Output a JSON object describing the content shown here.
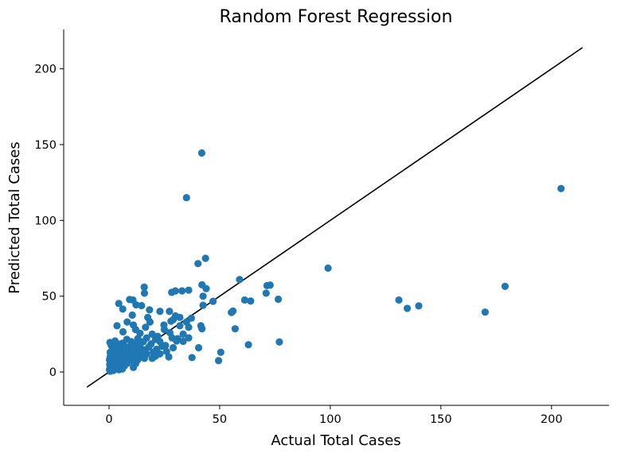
{
  "chart_data": {
    "type": "scatter",
    "title": "Random Forest Regression",
    "xlabel": "Actual Total Cases",
    "ylabel": "Predicted Total Cases",
    "xlim": [
      -20.5,
      226
    ],
    "ylim": [
      -22,
      226
    ],
    "xticks": [
      0,
      50,
      100,
      150,
      200
    ],
    "yticks": [
      0,
      50,
      100,
      150,
      200
    ],
    "grid": false,
    "legend": "none",
    "point_color": "#1f77b4",
    "line_color": "#000000",
    "reference_line": {
      "x": [
        -10,
        214
      ],
      "y": [
        -10,
        214
      ]
    },
    "points": [
      [
        41.9,
        144.5
      ],
      [
        35.0,
        115.0
      ],
      [
        204.3,
        121.0
      ],
      [
        43.6,
        75.0
      ],
      [
        40.2,
        71.5
      ],
      [
        99.0,
        68.5
      ],
      [
        59.0,
        61.0
      ],
      [
        72.8,
        57.3
      ],
      [
        71.4,
        57.0
      ],
      [
        42.0,
        57.5
      ],
      [
        15.9,
        56.0
      ],
      [
        179.0,
        56.5
      ],
      [
        33.0,
        53.5
      ],
      [
        30.0,
        53.5
      ],
      [
        36.0,
        54.0
      ],
      [
        28.3,
        52.5
      ],
      [
        43.9,
        55.0
      ],
      [
        16.0,
        52.0
      ],
      [
        71.0,
        52.0
      ],
      [
        42.5,
        50.0
      ],
      [
        9.3,
        47.8
      ],
      [
        10.8,
        47.5
      ],
      [
        131.0,
        47.5
      ],
      [
        76.5,
        48.0
      ],
      [
        61.3,
        47.5
      ],
      [
        64.0,
        46.8
      ],
      [
        47.0,
        46.6
      ],
      [
        4.4,
        45.2
      ],
      [
        12.2,
        44.3
      ],
      [
        14.7,
        43.8
      ],
      [
        42.5,
        44.0
      ],
      [
        134.8,
        42.0
      ],
      [
        140.0,
        43.6
      ],
      [
        6.2,
        41.5
      ],
      [
        18.3,
        41.0
      ],
      [
        55.3,
        39.3
      ],
      [
        56.0,
        40.2
      ],
      [
        23.0,
        40.0
      ],
      [
        27.3,
        40.0
      ],
      [
        170.0,
        39.5
      ],
      [
        10.5,
        37.5
      ],
      [
        30.0,
        37.0
      ],
      [
        17.5,
        36.0
      ],
      [
        32.0,
        36.0
      ],
      [
        37.2,
        35.5
      ],
      [
        29.0,
        34.5
      ],
      [
        28.0,
        33.5
      ],
      [
        8.2,
        33.0
      ],
      [
        18.5,
        33.0
      ],
      [
        35.0,
        33.0
      ],
      [
        24.8,
        31.0
      ],
      [
        11.0,
        31.0
      ],
      [
        3.6,
        30.5
      ],
      [
        32.0,
        30.5
      ],
      [
        41.5,
        30.5
      ],
      [
        57.0,
        28.5
      ],
      [
        36.0,
        29.5
      ],
      [
        16.5,
        29.5
      ],
      [
        12.0,
        28.0
      ],
      [
        25.0,
        28.0
      ],
      [
        42.0,
        28.5
      ],
      [
        6.3,
        26.5
      ],
      [
        27.5,
        26.0
      ],
      [
        14.0,
        25.5
      ],
      [
        19.5,
        25.0
      ],
      [
        33.5,
        25.0
      ],
      [
        22.0,
        23.5
      ],
      [
        17.0,
        22.5
      ],
      [
        28.5,
        22.5
      ],
      [
        31.0,
        22.0
      ],
      [
        36.0,
        22.5
      ],
      [
        8.0,
        21.5
      ],
      [
        21.0,
        21.5
      ],
      [
        2.7,
        20.5
      ],
      [
        0.4,
        19.5
      ],
      [
        10.0,
        20.0
      ],
      [
        13.5,
        20.0
      ],
      [
        15.5,
        20.0
      ],
      [
        23.0,
        20.0
      ],
      [
        77.0,
        19.8
      ],
      [
        30.5,
        20.5
      ],
      [
        33.5,
        20.2
      ],
      [
        6.0,
        19.0
      ],
      [
        4.0,
        18.5
      ],
      [
        11.0,
        18.5
      ],
      [
        19.0,
        18.5
      ],
      [
        63.0,
        18.0
      ],
      [
        1.0,
        17.5
      ],
      [
        7.0,
        17.0
      ],
      [
        14.0,
        17.5
      ],
      [
        24.0,
        17.0
      ],
      [
        2.5,
        16.0
      ],
      [
        9.0,
        16.5
      ],
      [
        18.0,
        16.5
      ],
      [
        29.0,
        16.0
      ],
      [
        40.5,
        16.0
      ],
      [
        5.5,
        15.0
      ],
      [
        12.5,
        15.5
      ],
      [
        21.5,
        15.0
      ],
      [
        1.5,
        14.5
      ],
      [
        16.0,
        14.5
      ],
      [
        3.5,
        13.5
      ],
      [
        8.5,
        14.0
      ],
      [
        11.5,
        14.0
      ],
      [
        26.0,
        13.5
      ],
      [
        0.5,
        13.0
      ],
      [
        6.5,
        13.0
      ],
      [
        14.5,
        13.0
      ],
      [
        20.0,
        13.0
      ],
      [
        50.5,
        13.0
      ],
      [
        2.0,
        12.0
      ],
      [
        4.5,
        12.5
      ],
      [
        10.0,
        12.5
      ],
      [
        17.0,
        12.0
      ],
      [
        23.0,
        12.0
      ],
      [
        1.0,
        11.0
      ],
      [
        7.5,
        11.5
      ],
      [
        12.0,
        11.0
      ],
      [
        0.5,
        10.0
      ],
      [
        3.0,
        10.5
      ],
      [
        5.5,
        10.0
      ],
      [
        9.5,
        10.5
      ],
      [
        15.0,
        10.0
      ],
      [
        21.0,
        10.5
      ],
      [
        27.0,
        10.0
      ],
      [
        1.5,
        9.0
      ],
      [
        4.0,
        9.5
      ],
      [
        8.0,
        9.0
      ],
      [
        11.0,
        9.5
      ],
      [
        16.0,
        9.0
      ],
      [
        19.5,
        9.0
      ],
      [
        37.5,
        9.5
      ],
      [
        0.2,
        8.0
      ],
      [
        2.5,
        8.5
      ],
      [
        6.0,
        8.0
      ],
      [
        13.0,
        8.0
      ],
      [
        0.8,
        7.0
      ],
      [
        3.5,
        7.5
      ],
      [
        7.0,
        7.0
      ],
      [
        10.0,
        7.5
      ],
      [
        49.5,
        7.5
      ],
      [
        1.5,
        6.0
      ],
      [
        4.5,
        6.5
      ],
      [
        8.5,
        6.0
      ],
      [
        0.3,
        5.0
      ],
      [
        2.5,
        5.5
      ],
      [
        5.5,
        5.0
      ],
      [
        12.0,
        5.5
      ],
      [
        1.0,
        4.0
      ],
      [
        3.5,
        4.5
      ],
      [
        7.0,
        4.0
      ],
      [
        0.5,
        3.0
      ],
      [
        2.0,
        3.5
      ],
      [
        5.0,
        3.0
      ],
      [
        11.0,
        3.0
      ],
      [
        1.0,
        2.0
      ],
      [
        3.0,
        2.5
      ],
      [
        6.0,
        2.0
      ],
      [
        0.2,
        1.5
      ],
      [
        4.5,
        1.5
      ],
      [
        2.0,
        1.0
      ],
      [
        0.5,
        0.5
      ],
      [
        9.0,
        14.5
      ],
      [
        13.0,
        22.0
      ],
      [
        25.5,
        17.5
      ]
    ]
  }
}
